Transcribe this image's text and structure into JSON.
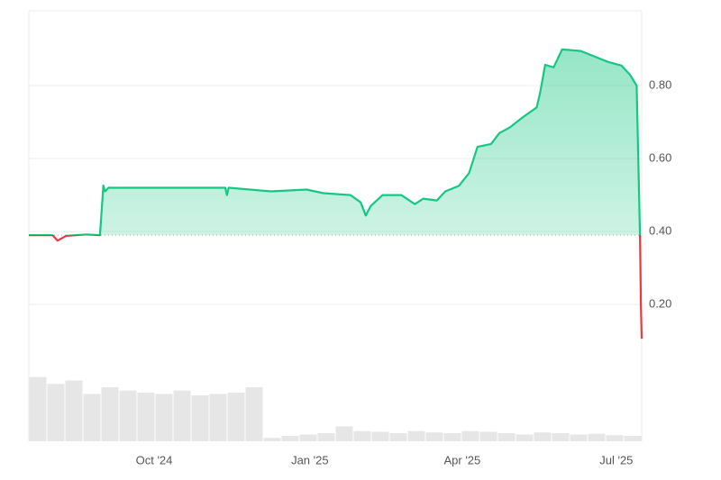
{
  "chart_data": {
    "type": "line",
    "x": [
      -74,
      -60,
      -57,
      -52,
      -40,
      -32,
      -30,
      -29,
      -27,
      0,
      42,
      43,
      44,
      69,
      90,
      100,
      116,
      122,
      125,
      128,
      135,
      146,
      154,
      159,
      167,
      172,
      180,
      186,
      191,
      199,
      204,
      210,
      218,
      226,
      228,
      231,
      236,
      241,
      252,
      260,
      268,
      276,
      281,
      285,
      287,
      287.5,
      288
    ],
    "series": [
      {
        "color": "#16c784",
        "values": [
          0.39,
          0.39,
          0.375,
          0.388,
          0.392,
          0.39,
          0.526,
          0.51,
          0.52,
          0.52,
          0.52,
          0.5,
          0.52,
          0.51,
          0.515,
          0.505,
          0.5,
          0.48,
          0.444,
          0.47,
          0.5,
          0.5,
          0.475,
          0.49,
          0.485,
          0.51,
          0.525,
          0.56,
          0.632,
          0.64,
          0.67,
          0.685,
          0.714,
          0.74,
          0.78,
          0.857,
          0.85,
          0.899,
          0.895,
          0.88,
          0.865,
          0.855,
          0.83,
          0.8,
          0.39,
          0.2,
          0.106
        ]
      }
    ],
    "baseline": 0.39,
    "below_color": "#ea3943",
    "xlim": [
      -74,
      288
    ],
    "xticks": [
      {
        "value": 0,
        "label": "Oct '24"
      },
      {
        "value": 92,
        "label": "Jan '25"
      },
      {
        "value": 182,
        "label": "Apr '25"
      },
      {
        "value": 273,
        "label": "Jul '25"
      }
    ],
    "ylim": [
      -0.175,
      1.005
    ],
    "yticks": [
      {
        "value": 0.2,
        "label": "0.20"
      },
      {
        "value": 0.4,
        "label": "0.40"
      },
      {
        "value": 0.6,
        "label": "0.60"
      },
      {
        "value": 0.8,
        "label": "0.80"
      }
    ],
    "grid": true,
    "volume": {
      "color": "#e6e6e6",
      "ylim": [
        0,
        1
      ],
      "values": [
        0.95,
        0.85,
        0.9,
        0.7,
        0.8,
        0.75,
        0.72,
        0.7,
        0.75,
        0.68,
        0.7,
        0.72,
        0.8,
        0.05,
        0.08,
        0.1,
        0.12,
        0.22,
        0.15,
        0.14,
        0.12,
        0.15,
        0.13,
        0.12,
        0.15,
        0.14,
        0.12,
        0.1,
        0.13,
        0.12,
        0.1,
        0.11,
        0.09,
        0.08
      ]
    }
  }
}
